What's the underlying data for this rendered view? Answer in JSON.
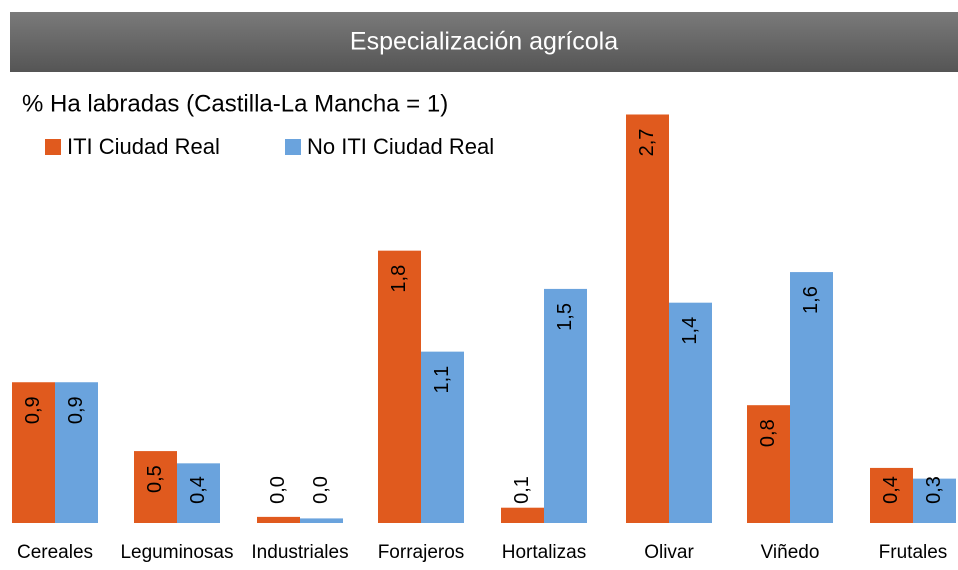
{
  "chart_data": {
    "type": "bar",
    "title": "Especialización agrícola",
    "subtitle": "% Ha labradas (Castilla-La Mancha = 1)",
    "categories": [
      "Cereales",
      "Leguminosas",
      "Industriales",
      "Forrajeros",
      "Hortalizas",
      "Olivar",
      "Viñedo",
      "Frutales"
    ],
    "series": [
      {
        "name": "ITI Ciudad Real",
        "color": "#e05a1e",
        "values": [
          0.92,
          0.47,
          0.04,
          1.78,
          0.1,
          2.67,
          0.77,
          0.36
        ],
        "value_labels": [
          "0,9",
          "0,5",
          "0,0",
          "1,8",
          "0,1",
          "2,7",
          "0,8",
          "0,4"
        ]
      },
      {
        "name": "No ITI Ciudad Real",
        "color": "#6aa3dd",
        "values": [
          0.92,
          0.39,
          0.03,
          1.12,
          1.53,
          1.44,
          1.64,
          0.29
        ],
        "value_labels": [
          "0,9",
          "0,4",
          "0,0",
          "1,1",
          "1,5",
          "1,4",
          "1,6",
          "0,3"
        ]
      }
    ]
  }
}
